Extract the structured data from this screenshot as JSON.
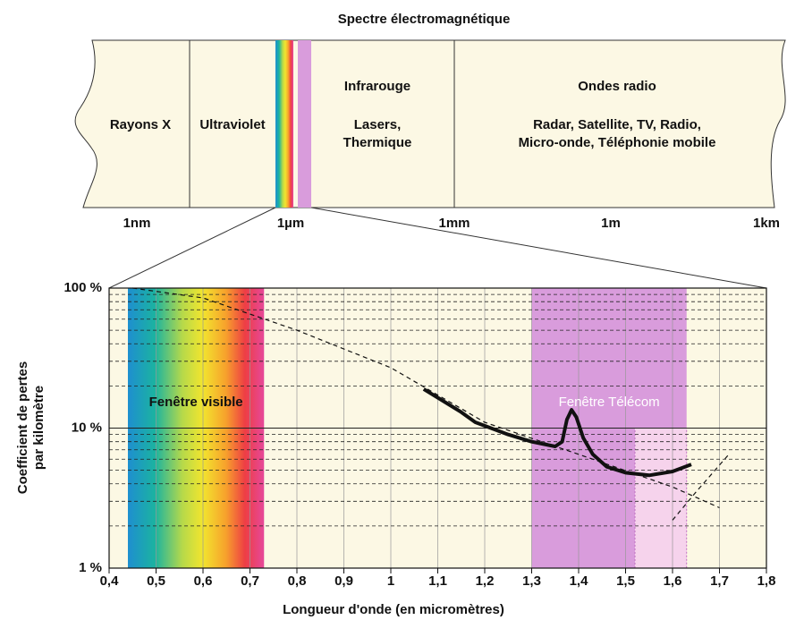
{
  "spectrum": {
    "title": "Spectre électromagnétique",
    "regions": [
      {
        "label": "Rayons X"
      },
      {
        "label": "Ultraviolet"
      },
      {
        "label": "Infrarouge",
        "detail": [
          "Lasers,",
          "Thermique"
        ]
      },
      {
        "label": "Ondes radio",
        "detail": [
          "Radar, Satellite, TV, Radio,",
          "Micro-onde, Téléphonie mobile"
        ]
      }
    ],
    "scale": [
      "1nm",
      "1µm",
      "1mm",
      "1m",
      "1km"
    ]
  },
  "chart_data": {
    "type": "line",
    "log_y": true,
    "grid": true,
    "minor_grid": true,
    "xlabel": "Longueur d'onde (en micromètres)",
    "ylabel": [
      "Coefficient de pertes",
      "par kilomètre"
    ],
    "xlim": [
      0.4,
      1.8
    ],
    "xticks": [
      {
        "value": 0.4,
        "label": "0,4"
      },
      {
        "value": 0.5,
        "label": "0,5"
      },
      {
        "value": 0.6,
        "label": "0,6"
      },
      {
        "value": 0.7,
        "label": "0,7"
      },
      {
        "value": 0.8,
        "label": "0,8"
      },
      {
        "value": 0.9,
        "label": "0,9"
      },
      1,
      {
        "value": 1.1,
        "label": "1,1"
      },
      {
        "value": 1.2,
        "label": "1,2"
      },
      {
        "value": 1.3,
        "label": "1,3"
      },
      {
        "value": 1.4,
        "label": "1,4"
      },
      {
        "value": 1.5,
        "label": "1,5"
      },
      {
        "value": 1.6,
        "label": "1,6"
      },
      {
        "value": 1.7,
        "label": "1,7"
      },
      {
        "value": 1.8,
        "label": "1,8"
      }
    ],
    "ylim": [
      1,
      100
    ],
    "yticks": [
      {
        "value": 1,
        "label": "1 %"
      },
      {
        "value": 10,
        "label": "10 %"
      },
      {
        "value": 100,
        "label": "100 %"
      }
    ],
    "bands": [
      {
        "name": "Fenêtre visible",
        "x": [
          0.44,
          0.73
        ]
      },
      {
        "name": "Fenêtre Télécom",
        "x": [
          1.3,
          1.63
        ],
        "color": "#d99cdc"
      }
    ],
    "highlight": {
      "x": [
        1.52,
        1.63
      ],
      "y": [
        1,
        10
      ],
      "color": "#f6d3ec"
    },
    "lines": [
      {
        "style": "solid",
        "color": "#111",
        "x": [
          1.07,
          1.1,
          1.15,
          1.18,
          1.25,
          1.3,
          1.35,
          1.365,
          1.375,
          1.385,
          1.395,
          1.41,
          1.43,
          1.46,
          1.5,
          1.55,
          1.6,
          1.64
        ],
        "values": [
          19,
          16.5,
          13,
          11,
          9,
          8,
          7.4,
          8,
          11.5,
          13.5,
          12,
          8.5,
          6.5,
          5.3,
          4.8,
          4.6,
          4.9,
          5.5
        ]
      },
      {
        "style": "dashed",
        "color": "#111",
        "x": [
          0.45,
          0.6,
          0.8,
          1.0,
          1.2,
          1.4,
          1.6,
          1.7
        ],
        "values": [
          100,
          85,
          50,
          27,
          11,
          6.5,
          3.8,
          2.7
        ]
      },
      {
        "style": "dashed",
        "color": "#111",
        "x": [
          1.6,
          1.65,
          1.72
        ],
        "values": [
          2.2,
          3.5,
          6.5
        ]
      }
    ]
  }
}
